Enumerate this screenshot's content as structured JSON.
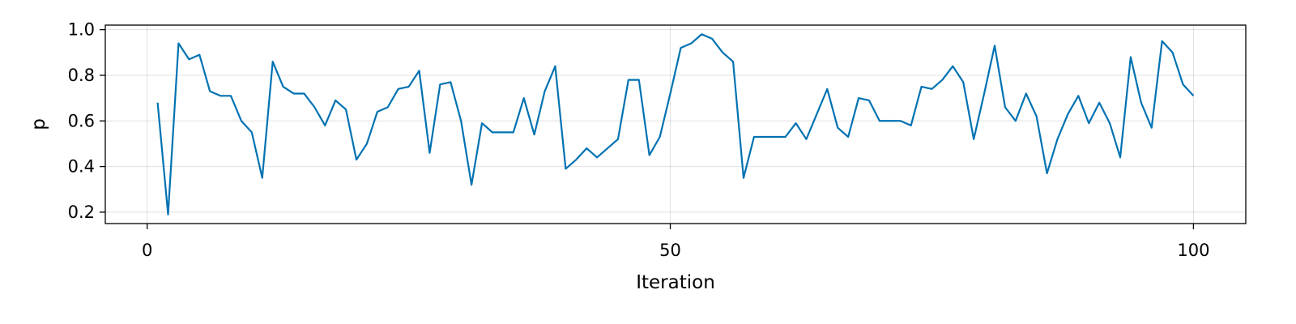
{
  "chart_data": {
    "type": "line",
    "xlabel": "Iteration",
    "ylabel": "p",
    "xlim": [
      -4,
      105
    ],
    "ylim": [
      0.15,
      1.02
    ],
    "xticks": [
      0,
      50,
      100
    ],
    "xtick_labels": [
      "0",
      "50",
      "100"
    ],
    "yticks": [
      0.2,
      0.4,
      0.6,
      0.8,
      1.0
    ],
    "ytick_labels": [
      "0.2",
      "0.4",
      "0.6",
      "0.8",
      "1.0"
    ],
    "grid": true,
    "colors": {
      "series": "#0072B2",
      "frame": "#000000",
      "background": "#ffffff"
    },
    "series": [
      {
        "x": [
          1,
          2,
          3,
          4,
          5,
          6,
          7,
          8,
          9,
          10,
          11,
          12,
          13,
          14,
          15,
          16,
          17,
          18,
          19,
          20,
          21,
          22,
          23,
          24,
          25,
          26,
          27,
          28,
          29,
          30,
          31,
          32,
          33,
          34,
          35,
          36,
          37,
          38,
          39,
          40,
          41,
          42,
          43,
          44,
          45,
          46,
          47,
          48,
          49,
          50,
          51,
          52,
          53,
          54,
          55,
          56,
          57,
          58,
          59,
          60,
          61,
          62,
          63,
          64,
          65,
          66,
          67,
          68,
          69,
          70,
          71,
          72,
          73,
          74,
          75,
          76,
          77,
          78,
          79,
          80,
          81,
          82,
          83,
          84,
          85,
          86,
          87,
          88,
          89,
          90,
          91,
          92,
          93,
          94,
          95,
          96,
          97,
          98,
          99,
          100
        ],
        "values": [
          0.68,
          0.19,
          0.94,
          0.87,
          0.89,
          0.73,
          0.71,
          0.71,
          0.6,
          0.55,
          0.35,
          0.86,
          0.75,
          0.72,
          0.72,
          0.66,
          0.58,
          0.69,
          0.65,
          0.43,
          0.5,
          0.64,
          0.66,
          0.74,
          0.75,
          0.82,
          0.46,
          0.76,
          0.77,
          0.6,
          0.32,
          0.59,
          0.55,
          0.55,
          0.55,
          0.7,
          0.54,
          0.73,
          0.84,
          0.39,
          0.43,
          0.48,
          0.44,
          0.48,
          0.52,
          0.78,
          0.78,
          0.45,
          0.53,
          0.72,
          0.92,
          0.94,
          0.98,
          0.96,
          0.9,
          0.86,
          0.35,
          0.53,
          0.53,
          0.53,
          0.53,
          0.59,
          0.52,
          0.63,
          0.74,
          0.57,
          0.53,
          0.7,
          0.69,
          0.6,
          0.6,
          0.6,
          0.58,
          0.75,
          0.74,
          0.78,
          0.84,
          0.77,
          0.52,
          0.72,
          0.93,
          0.66,
          0.6,
          0.72,
          0.62,
          0.37,
          0.52,
          0.63,
          0.71,
          0.59,
          0.68,
          0.59,
          0.44,
          0.88,
          0.68,
          0.57,
          0.95,
          0.9,
          0.76,
          0.71
        ]
      }
    ]
  }
}
